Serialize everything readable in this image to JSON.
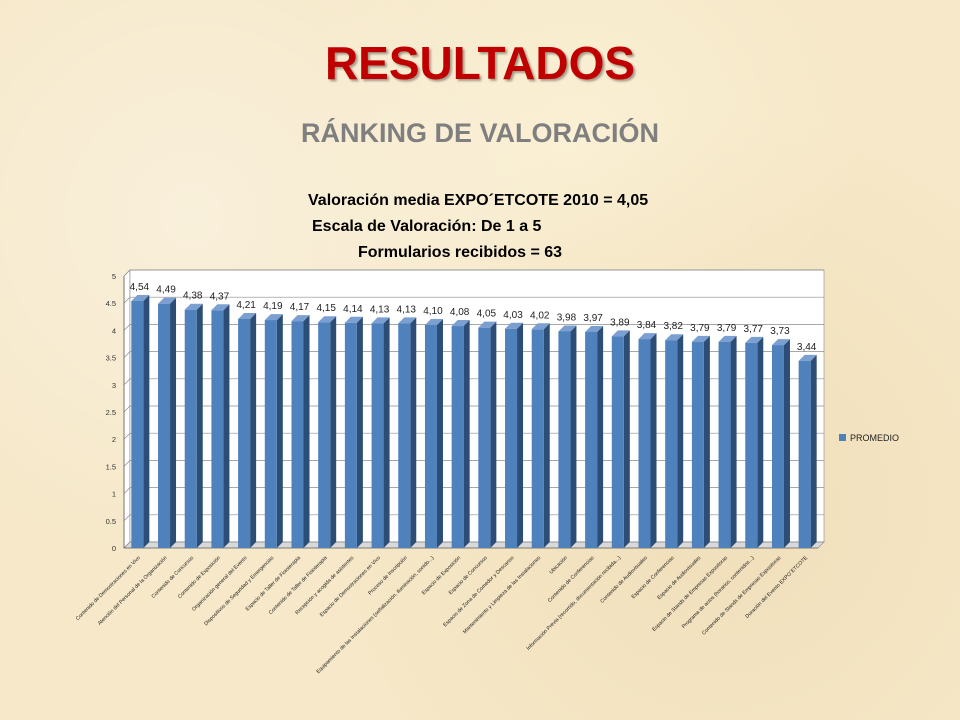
{
  "slide": {
    "title": "RESULTADOS",
    "subtitle": "RÁNKING DE VALORACIÓN",
    "info_lines": [
      "Valoración media EXPO´ETCOTE 2010 = 4,05",
      "Escala de Valoración: De 1 a 5",
      "Formularios recibidos = 63"
    ]
  },
  "chart_data": {
    "type": "bar",
    "legend_position": "right",
    "grid": true,
    "ylim": [
      0,
      5
    ],
    "yticks": [
      "0",
      "0.5",
      "1",
      "1.5",
      "2",
      "2.5",
      "3",
      "3.5",
      "4",
      "4.5",
      "5"
    ],
    "bar_color": "#4f81bd",
    "series": [
      {
        "name": "PROMEDIO",
        "values": [
          4.54,
          4.49,
          4.38,
          4.37,
          4.21,
          4.19,
          4.17,
          4.15,
          4.14,
          4.13,
          4.13,
          4.1,
          4.08,
          4.05,
          4.03,
          4.02,
          3.98,
          3.97,
          3.89,
          3.84,
          3.82,
          3.79,
          3.79,
          3.77,
          3.73,
          3.44
        ],
        "labels": [
          "4,54",
          "4,49",
          "4,38",
          "4,37",
          "4,21",
          "4,19",
          "4,17",
          "4,15",
          "4,14",
          "4,13",
          "4,13",
          "4,10",
          "4,08",
          "4,05",
          "4,03",
          "4,02",
          "3,98",
          "3,97",
          "3,89",
          "3,84",
          "3,82",
          "3,79",
          "3,79",
          "3,77",
          "3,73",
          "3,44"
        ]
      }
    ],
    "categories": [
      "Contenido de Demostraciones en Vivo",
      "Atención del Personal de la Organización",
      "Contenido de Concursos",
      "Contenido de Exposición",
      "Organización general del Evento",
      "Dispositivos de Seguridad y Emergencias",
      "Espacio de Taller de Fisioterapia",
      "Contenido de Taller de Fisioterapia",
      "Recepción y acogida de asistentes",
      "Espacio de Demostraciones en Vivo",
      "Proceso de Inscripción",
      "Equipamiento de las Instalaciones (señalización, iluminación, sonido...)",
      "Espacio de Exposición",
      "Espacio de Concursos",
      "Espacio de Zona de Comedor y Descanso",
      "Mantenimiento y Limpieza de las Instalaciones",
      "Ubicación",
      "Contenido de Conferencias",
      "Información Previa (recorrido, documentación recibida...)",
      "Contenido de Audiovisuales",
      "Espacio de Conferencias",
      "Espacio de Audiovisuales",
      "Espacio de Stands de Empresas Expositoras",
      "Programa de actos (horarios, contenidos...)",
      "Contenido de Stands de Empresas Expositoras",
      "Duración del Evento EXPO´ETCOTE"
    ]
  }
}
